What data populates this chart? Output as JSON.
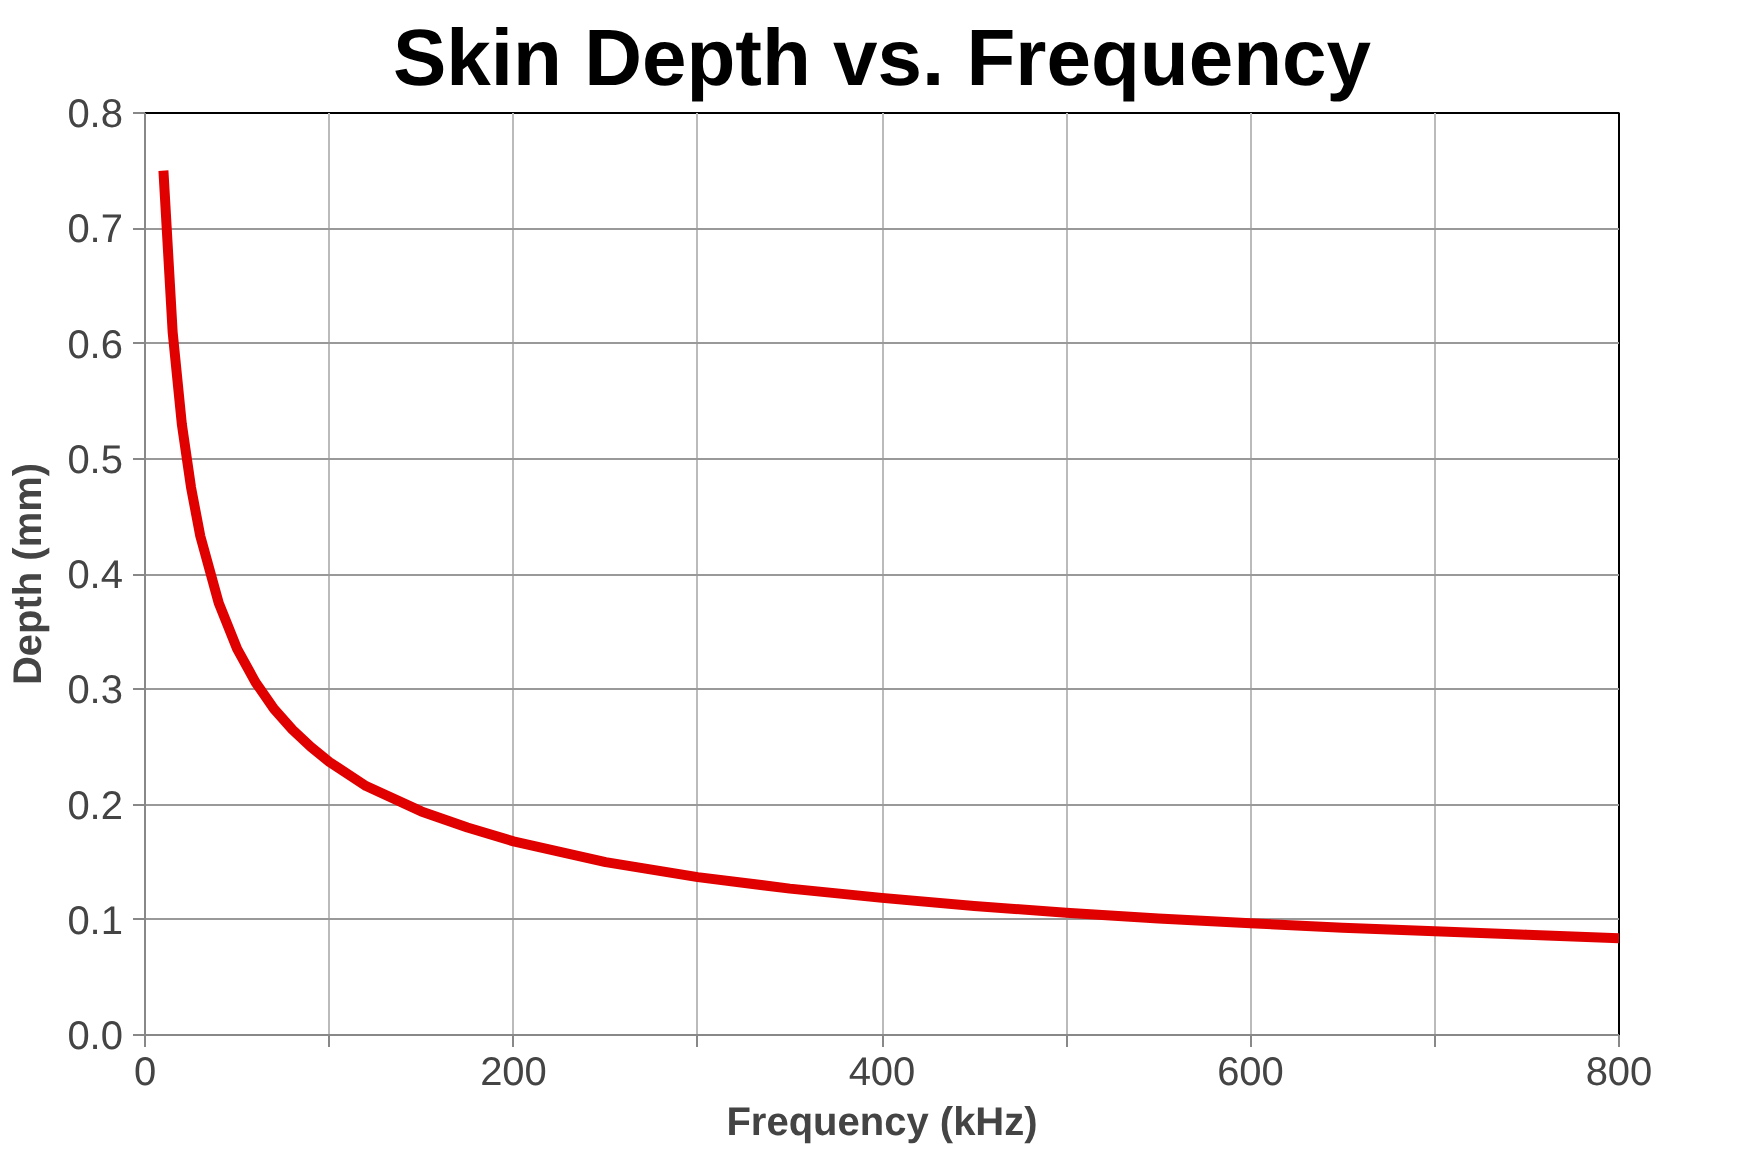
{
  "chart_data": {
    "type": "line",
    "title": "Skin Depth vs. Frequency",
    "xlabel": "Frequency (kHz)",
    "ylabel": "Depth (mm)",
    "x": [
      10,
      15,
      20,
      25,
      30,
      40,
      50,
      60,
      70,
      80,
      90,
      100,
      120,
      150,
      175,
      200,
      250,
      300,
      350,
      400,
      450,
      500,
      550,
      600,
      650,
      700,
      750,
      800
    ],
    "series": [
      {
        "color": "#e00000",
        "values": [
          0.75,
          0.61,
          0.53,
          0.475,
          0.433,
          0.375,
          0.335,
          0.306,
          0.283,
          0.265,
          0.25,
          0.237,
          0.216,
          0.194,
          0.18,
          0.168,
          0.15,
          0.137,
          0.127,
          0.119,
          0.112,
          0.106,
          0.101,
          0.097,
          0.093,
          0.09,
          0.087,
          0.084
        ]
      }
    ],
    "xlim": [
      0,
      800
    ],
    "ylim": [
      0,
      0.8
    ],
    "xticks": [
      0,
      {
        "value": 100,
        "label": null
      },
      200,
      {
        "value": 300,
        "label": null
      },
      400,
      {
        "value": 500,
        "label": null
      },
      600,
      {
        "value": 700,
        "label": null
      },
      800
    ],
    "yticks": [
      {
        "value": 0,
        "label": "0.0"
      },
      0.1,
      0.2,
      0.3,
      0.4,
      0.5,
      0.6,
      0.7,
      0.8
    ],
    "grid": true,
    "line_style": "solid"
  }
}
